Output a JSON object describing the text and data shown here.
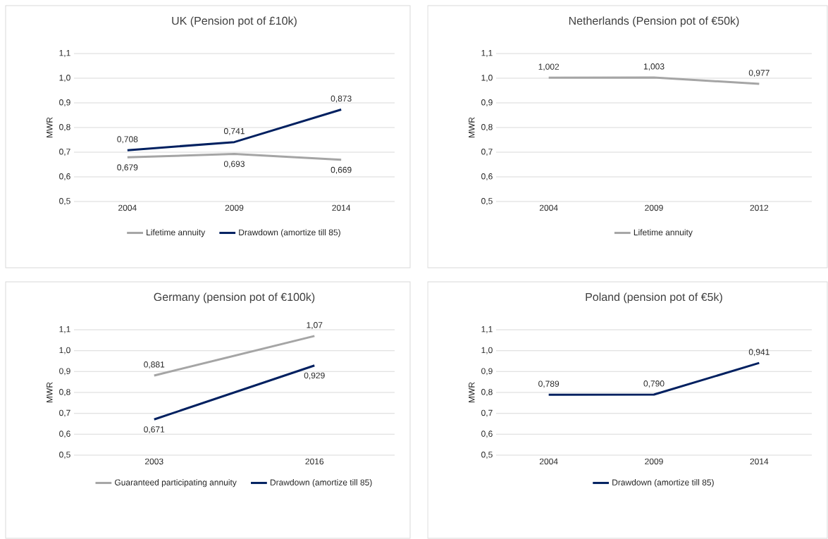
{
  "chart_data": [
    {
      "type": "line",
      "title": "UK (Pension pot of £10k)",
      "ylabel": "MWR",
      "categories": [
        "2004",
        "2009",
        "2014"
      ],
      "series": [
        {
          "name": "Lifetime annuity",
          "color": "#a5a5a5",
          "values": [
            0.679,
            0.693,
            0.669
          ],
          "value_labels": [
            "0,679",
            "0,693",
            "0,669"
          ]
        },
        {
          "name": "Drawdown (amortize till 85)",
          "color": "#002060",
          "values": [
            0.708,
            0.741,
            0.873
          ],
          "value_labels": [
            "0,708",
            "0,741",
            "0,873"
          ]
        }
      ],
      "ylim": [
        0.5,
        1.1
      ],
      "yticks": [
        {
          "value": 0.5,
          "label": "0,5"
        },
        {
          "value": 0.6,
          "label": "0,6"
        },
        {
          "value": 0.7,
          "label": "0,7"
        },
        {
          "value": 0.8,
          "label": "0,8"
        },
        {
          "value": 0.9,
          "label": "0,9"
        },
        {
          "value": 1.0,
          "label": "1,0"
        },
        {
          "value": 1.1,
          "label": "1,1"
        }
      ],
      "grid": "y",
      "legend": "bottom"
    },
    {
      "type": "line",
      "title": "Netherlands (Pension pot of €50k)",
      "ylabel": "MWR",
      "categories": [
        "2004",
        "2009",
        "2012"
      ],
      "series": [
        {
          "name": "Lifetime annuity",
          "color": "#a5a5a5",
          "values": [
            1.002,
            1.003,
            0.977
          ],
          "value_labels": [
            "1,002",
            "1,003",
            "0,977"
          ]
        }
      ],
      "ylim": [
        0.5,
        1.1
      ],
      "yticks": [
        {
          "value": 0.5,
          "label": "0,5"
        },
        {
          "value": 0.6,
          "label": "0,6"
        },
        {
          "value": 0.7,
          "label": "0,7"
        },
        {
          "value": 0.8,
          "label": "0,8"
        },
        {
          "value": 0.9,
          "label": "0,9"
        },
        {
          "value": 1.0,
          "label": "1,0"
        },
        {
          "value": 1.1,
          "label": "1,1"
        }
      ],
      "grid": "y",
      "legend": "bottom"
    },
    {
      "type": "line",
      "title": "Germany (pension pot of €100k)",
      "ylabel": "MWR",
      "categories": [
        "2003",
        "2016"
      ],
      "series": [
        {
          "name": "Guaranteed participating annuity",
          "color": "#a5a5a5",
          "values": [
            0.881,
            1.07
          ],
          "value_labels": [
            "0,881",
            "1,07"
          ]
        },
        {
          "name": "Drawdown (amortize till 85)",
          "color": "#002060",
          "values": [
            0.671,
            0.929
          ],
          "value_labels": [
            "0,671",
            "0,929"
          ]
        }
      ],
      "ylim": [
        0.5,
        1.1
      ],
      "yticks": [
        {
          "value": 0.5,
          "label": "0,5"
        },
        {
          "value": 0.6,
          "label": "0,6"
        },
        {
          "value": 0.7,
          "label": "0,7"
        },
        {
          "value": 0.8,
          "label": "0,8"
        },
        {
          "value": 0.9,
          "label": "0,9"
        },
        {
          "value": 1.0,
          "label": "1,0"
        },
        {
          "value": 1.1,
          "label": "1,1"
        }
      ],
      "grid": "y",
      "legend": "bottom"
    },
    {
      "type": "line",
      "title": "Poland (pension pot of €5k)",
      "ylabel": "MWR",
      "categories": [
        "2004",
        "2009",
        "2014"
      ],
      "series": [
        {
          "name": "Drawdown (amortize till 85)",
          "color": "#002060",
          "values": [
            0.789,
            0.79,
            0.941
          ],
          "value_labels": [
            "0,789",
            "0,790",
            "0,941"
          ]
        }
      ],
      "ylim": [
        0.5,
        1.1
      ],
      "yticks": [
        {
          "value": 0.5,
          "label": "0,5"
        },
        {
          "value": 0.6,
          "label": "0,6"
        },
        {
          "value": 0.7,
          "label": "0,7"
        },
        {
          "value": 0.8,
          "label": "0,8"
        },
        {
          "value": 0.9,
          "label": "0,9"
        },
        {
          "value": 1.0,
          "label": "1,0"
        },
        {
          "value": 1.1,
          "label": "1,1"
        }
      ],
      "grid": "y",
      "legend": "bottom"
    }
  ]
}
